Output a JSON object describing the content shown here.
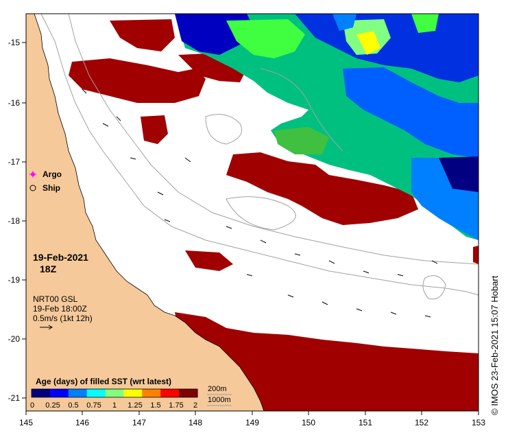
{
  "map": {
    "x_ticks": [
      "145",
      "146",
      "147",
      "148",
      "149",
      "150",
      "151",
      "152",
      "153"
    ],
    "y_ticks": [
      "-15",
      "-16",
      "-17",
      "-18",
      "-19",
      "-20",
      "-21"
    ],
    "x_range": [
      145,
      153
    ],
    "y_range": [
      -21.2,
      -14.6
    ]
  },
  "legend": {
    "argo": "Argo",
    "ship": "Ship",
    "argo_color": "#ff00ff",
    "date": "19-Feb-2021",
    "hour": "18Z",
    "product": "NRT00 GSL",
    "time": "19-Feb 18:00Z",
    "scale": "0.5m/s (1kt 12h)"
  },
  "colorbar": {
    "title": "Age (days) of filled SST (wrt latest)",
    "labels": [
      "0",
      "0.25",
      "0.5",
      "0.75",
      "1",
      "1.25",
      "1.5",
      "1.75",
      "2"
    ],
    "colors": [
      "#00007f",
      "#0000ff",
      "#0080ff",
      "#00ffff",
      "#80ff80",
      "#ffff00",
      "#ff8000",
      "#ff0000",
      "#7f0000"
    ]
  },
  "contours": {
    "label_200": "200m",
    "label_1000": "1000m"
  },
  "credit": "© IMOS 23-Feb-2021 15:07 Hobart",
  "colors": {
    "land": "#f5c99a",
    "sea": "#ffffff",
    "old_sst": "#a00000",
    "contour": "#a0a0a0"
  }
}
